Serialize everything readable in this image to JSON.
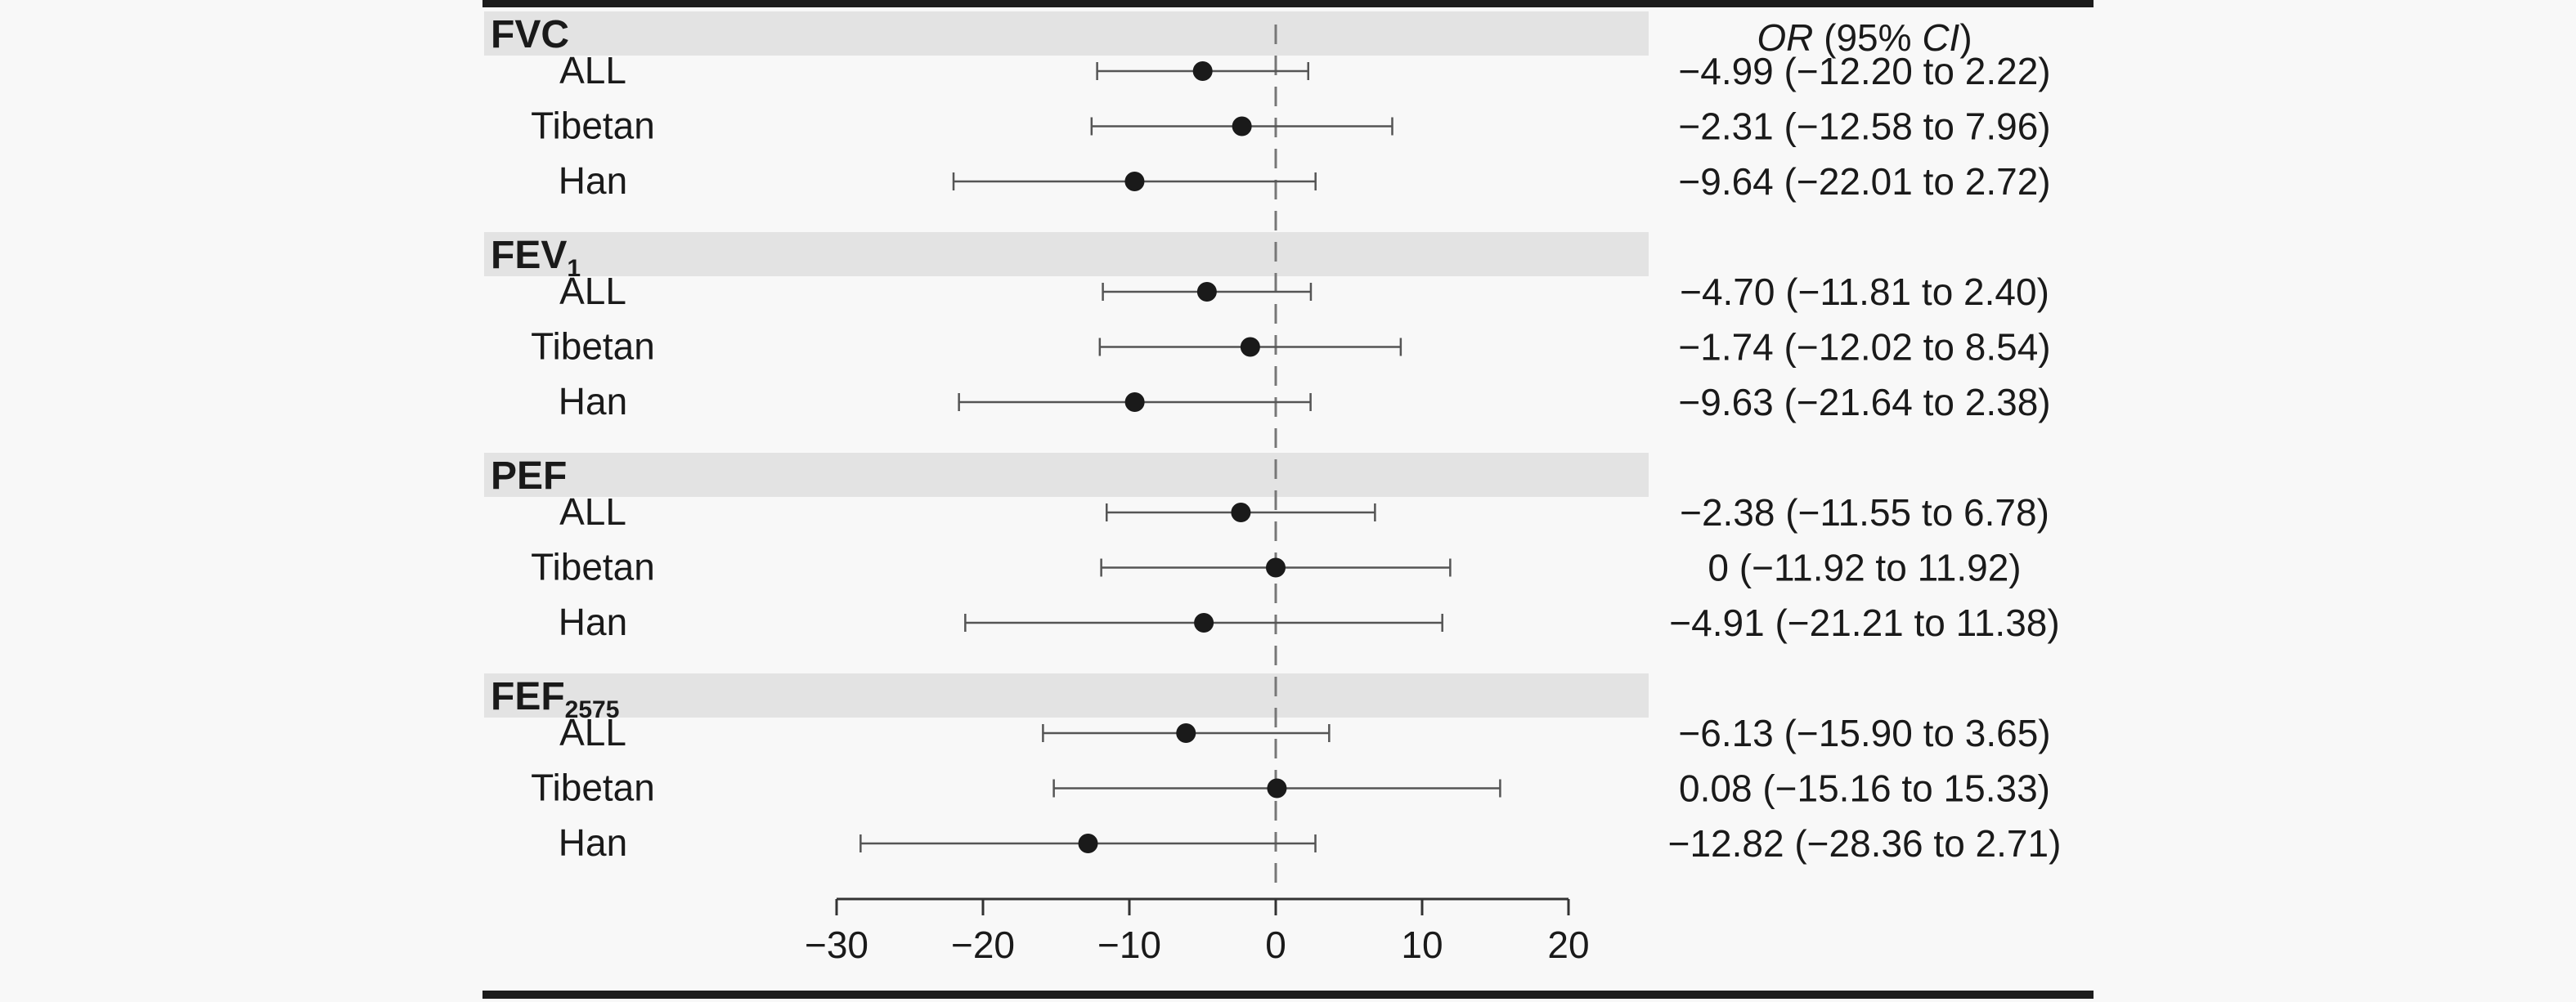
{
  "chart_data": {
    "type": "forest",
    "right_header": {
      "italic1": "OR",
      "mid": " (95% ",
      "italic2": "CI",
      "end": ")"
    },
    "reference_line": 0,
    "xlim": [
      -30,
      20
    ],
    "x_ticks": [
      -30,
      -20,
      -10,
      0,
      10,
      20
    ],
    "x_tick_labels": [
      "−30",
      "−20",
      "−10",
      "0",
      "10",
      "20"
    ],
    "groups": [
      {
        "label": "FVC",
        "subscript": "",
        "rows": [
          {
            "label": "ALL",
            "estimate": -4.99,
            "lower": -12.2,
            "upper": 2.22,
            "ci_text": "−4.99 (−12.20 to 2.22)"
          },
          {
            "label": "Tibetan",
            "estimate": -2.31,
            "lower": -12.58,
            "upper": 7.96,
            "ci_text": "−2.31 (−12.58 to 7.96)"
          },
          {
            "label": "Han",
            "estimate": -9.64,
            "lower": -22.01,
            "upper": 2.72,
            "ci_text": "−9.64 (−22.01 to 2.72)"
          }
        ]
      },
      {
        "label": "FEV",
        "subscript": "1",
        "rows": [
          {
            "label": "ALL",
            "estimate": -4.7,
            "lower": -11.81,
            "upper": 2.4,
            "ci_text": "−4.70 (−11.81 to 2.40)"
          },
          {
            "label": "Tibetan",
            "estimate": -1.74,
            "lower": -12.02,
            "upper": 8.54,
            "ci_text": "−1.74 (−12.02 to 8.54)"
          },
          {
            "label": "Han",
            "estimate": -9.63,
            "lower": -21.64,
            "upper": 2.38,
            "ci_text": "−9.63 (−21.64 to 2.38)"
          }
        ]
      },
      {
        "label": "PEF",
        "subscript": "",
        "rows": [
          {
            "label": "ALL",
            "estimate": -2.38,
            "lower": -11.55,
            "upper": 6.78,
            "ci_text": "−2.38 (−11.55 to 6.78)"
          },
          {
            "label": "Tibetan",
            "estimate": 0,
            "lower": -11.92,
            "upper": 11.92,
            "ci_text": "0 (−11.92 to 11.92)"
          },
          {
            "label": "Han",
            "estimate": -4.91,
            "lower": -21.21,
            "upper": 11.38,
            "ci_text": "−4.91 (−21.21 to 11.38)"
          }
        ]
      },
      {
        "label": "FEF",
        "subscript": "2575",
        "rows": [
          {
            "label": "ALL",
            "estimate": -6.13,
            "lower": -15.9,
            "upper": 3.65,
            "ci_text": "−6.13 (−15.90 to 3.65)"
          },
          {
            "label": "Tibetan",
            "estimate": 0.08,
            "lower": -15.16,
            "upper": 15.33,
            "ci_text": "0.08 (−15.16 to 15.33)"
          },
          {
            "label": "Han",
            "estimate": -12.82,
            "lower": -28.36,
            "upper": 2.71,
            "ci_text": "−12.82 (−28.36 to 2.71)"
          }
        ]
      }
    ],
    "colors": {
      "band": "#e3e3e3",
      "frame": "#1c1c1c",
      "ci_line": "#555555",
      "point": "#1a1a1a",
      "ref_line": "#777777",
      "background": "#f8f8f8"
    }
  }
}
